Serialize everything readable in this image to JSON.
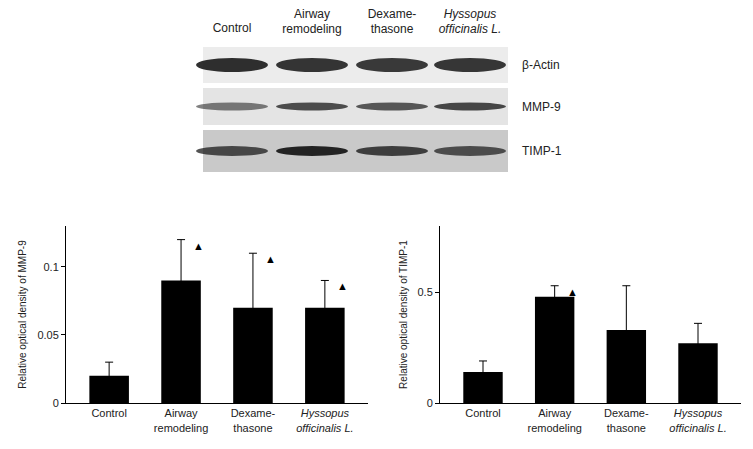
{
  "blot": {
    "lanes": [
      {
        "text": "Control"
      },
      {
        "text": "Airway\nremodeling"
      },
      {
        "text": "Dexame-\nthasone"
      },
      {
        "text": "Hyssopus\nofficinalis L.",
        "style": "italic"
      }
    ],
    "rows": [
      "β-Actin",
      "MMP-9",
      "TIMP-1"
    ]
  },
  "chart_data": [
    {
      "type": "bar",
      "categories": [
        "Control",
        "Airway\nremodeling",
        "Dexame-\nthasone",
        "Hyssopus\nofficinalis L."
      ],
      "values": [
        0.02,
        0.09,
        0.07,
        0.07
      ],
      "errors": [
        0.01,
        0.03,
        0.04,
        0.02
      ],
      "color": "#000000",
      "y_label": "Relative optical density of MMP-9",
      "ylim": [
        0,
        0.13
      ],
      "yticks": [
        0,
        0.05,
        0.1
      ],
      "grid": false,
      "annotations": [
        {
          "category": "Airway\nremodeling",
          "text": "▲"
        },
        {
          "category": "Dexame-\nthasone",
          "text": "▲"
        },
        {
          "category": "Hyssopus\nofficinalis L.",
          "text": "▲"
        }
      ]
    },
    {
      "type": "bar",
      "categories": [
        "Control",
        "Airway\nremodeling",
        "Dexame-\nthasone",
        "Hyssopus\nofficinalis L."
      ],
      "values": [
        0.14,
        0.48,
        0.33,
        0.27
      ],
      "errors": [
        0.05,
        0.05,
        0.2,
        0.09
      ],
      "color": "#000000",
      "y_label": "Relative optical density of TIMP-1",
      "ylim": [
        0,
        0.8
      ],
      "yticks": [
        0,
        0.5
      ],
      "grid": false,
      "annotations": [
        {
          "category": "Airway\nremodeling",
          "text": "▲"
        }
      ]
    }
  ]
}
